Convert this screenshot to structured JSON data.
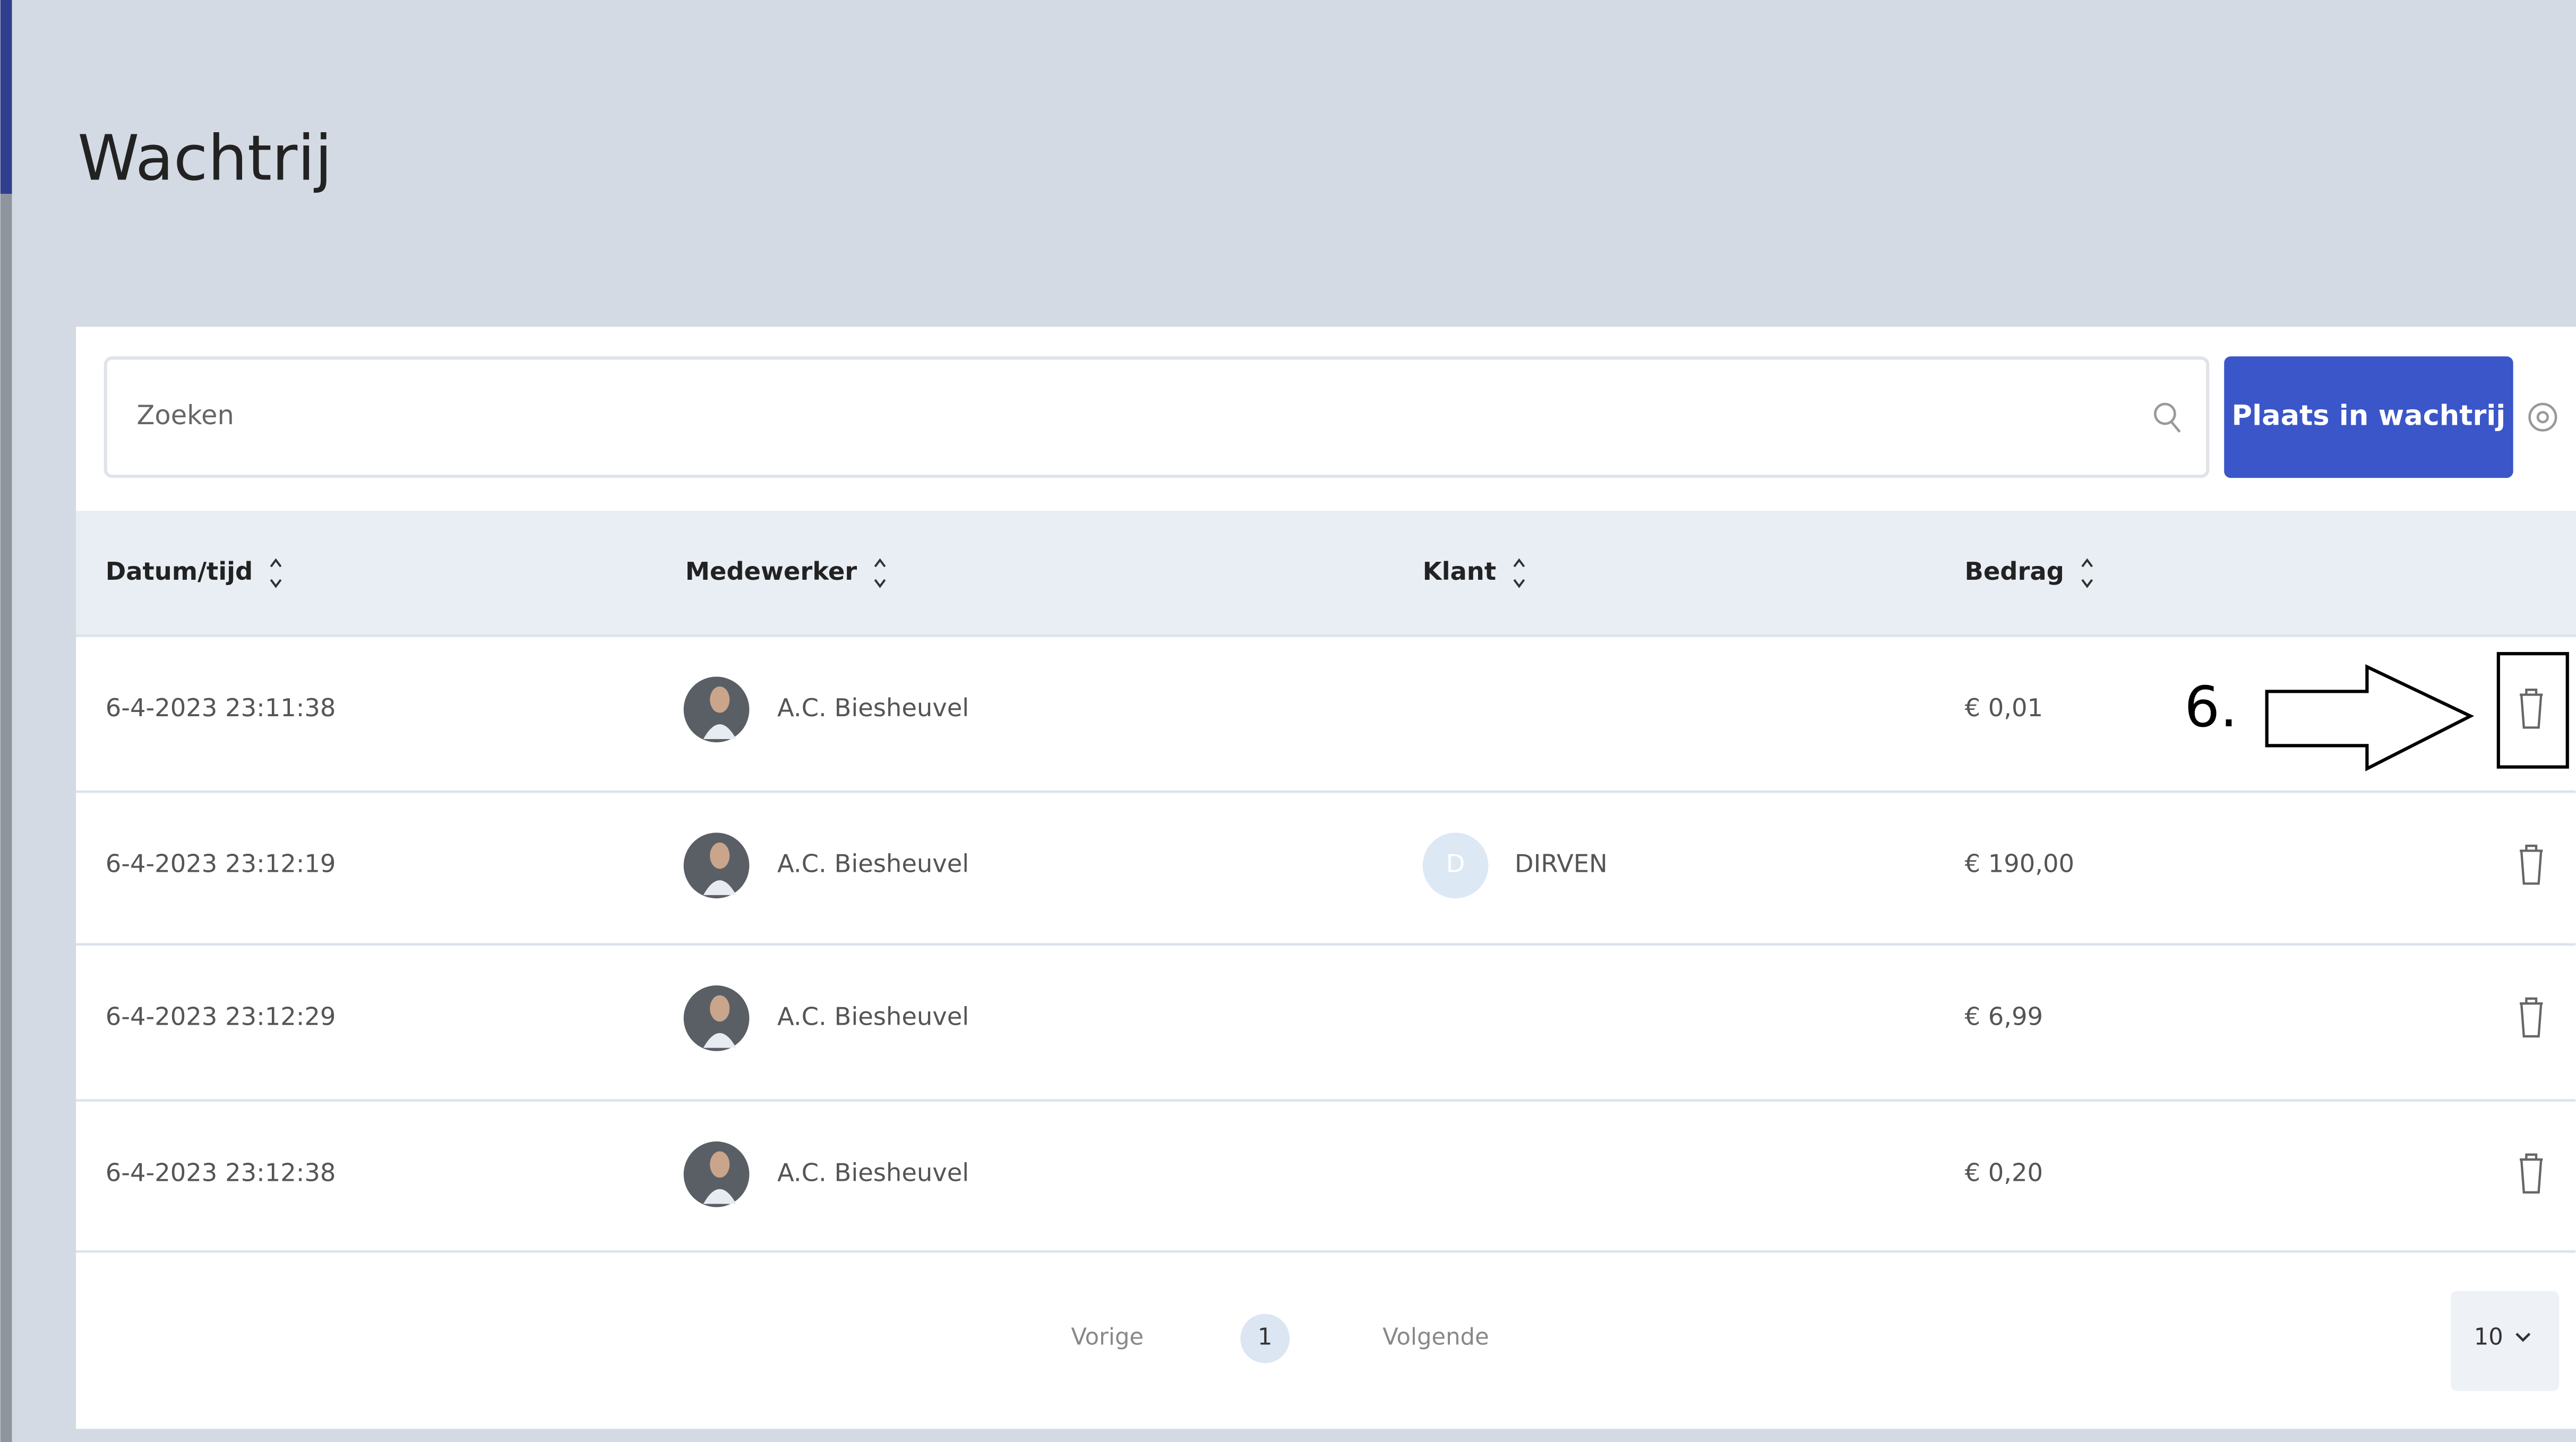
{
  "header": {
    "title": "Wachtrij"
  },
  "toolbar": {
    "search_placeholder": "Zoeken",
    "button": "Plaats in wachtrij"
  },
  "table": {
    "columns": [
      "Datum/tijd",
      "Medewerker",
      "Klant",
      "Bedrag"
    ],
    "rows": [
      {
        "datetime": "6-4-2023 23:11:38",
        "employee": "A.C. Biesheuvel",
        "customer_initial": null,
        "customer": null,
        "amount": "€ 0,01"
      },
      {
        "datetime": "6-4-2023 23:12:19",
        "employee": "A.C. Biesheuvel",
        "customer_initial": "D",
        "customer": "DIRVEN",
        "amount": "€ 190,00"
      },
      {
        "datetime": "6-4-2023 23:12:29",
        "employee": "A.C. Biesheuvel",
        "customer_initial": null,
        "customer": null,
        "amount": "€ 6,99"
      },
      {
        "datetime": "6-4-2023 23:12:38",
        "employee": "A.C. Biesheuvel",
        "customer_initial": null,
        "customer": null,
        "amount": "€ 0,20"
      }
    ]
  },
  "pagination": {
    "previous": "Vorige",
    "current": "1",
    "next": "Volgende",
    "page_size": "10"
  },
  "annotation": {
    "label": "6."
  }
}
